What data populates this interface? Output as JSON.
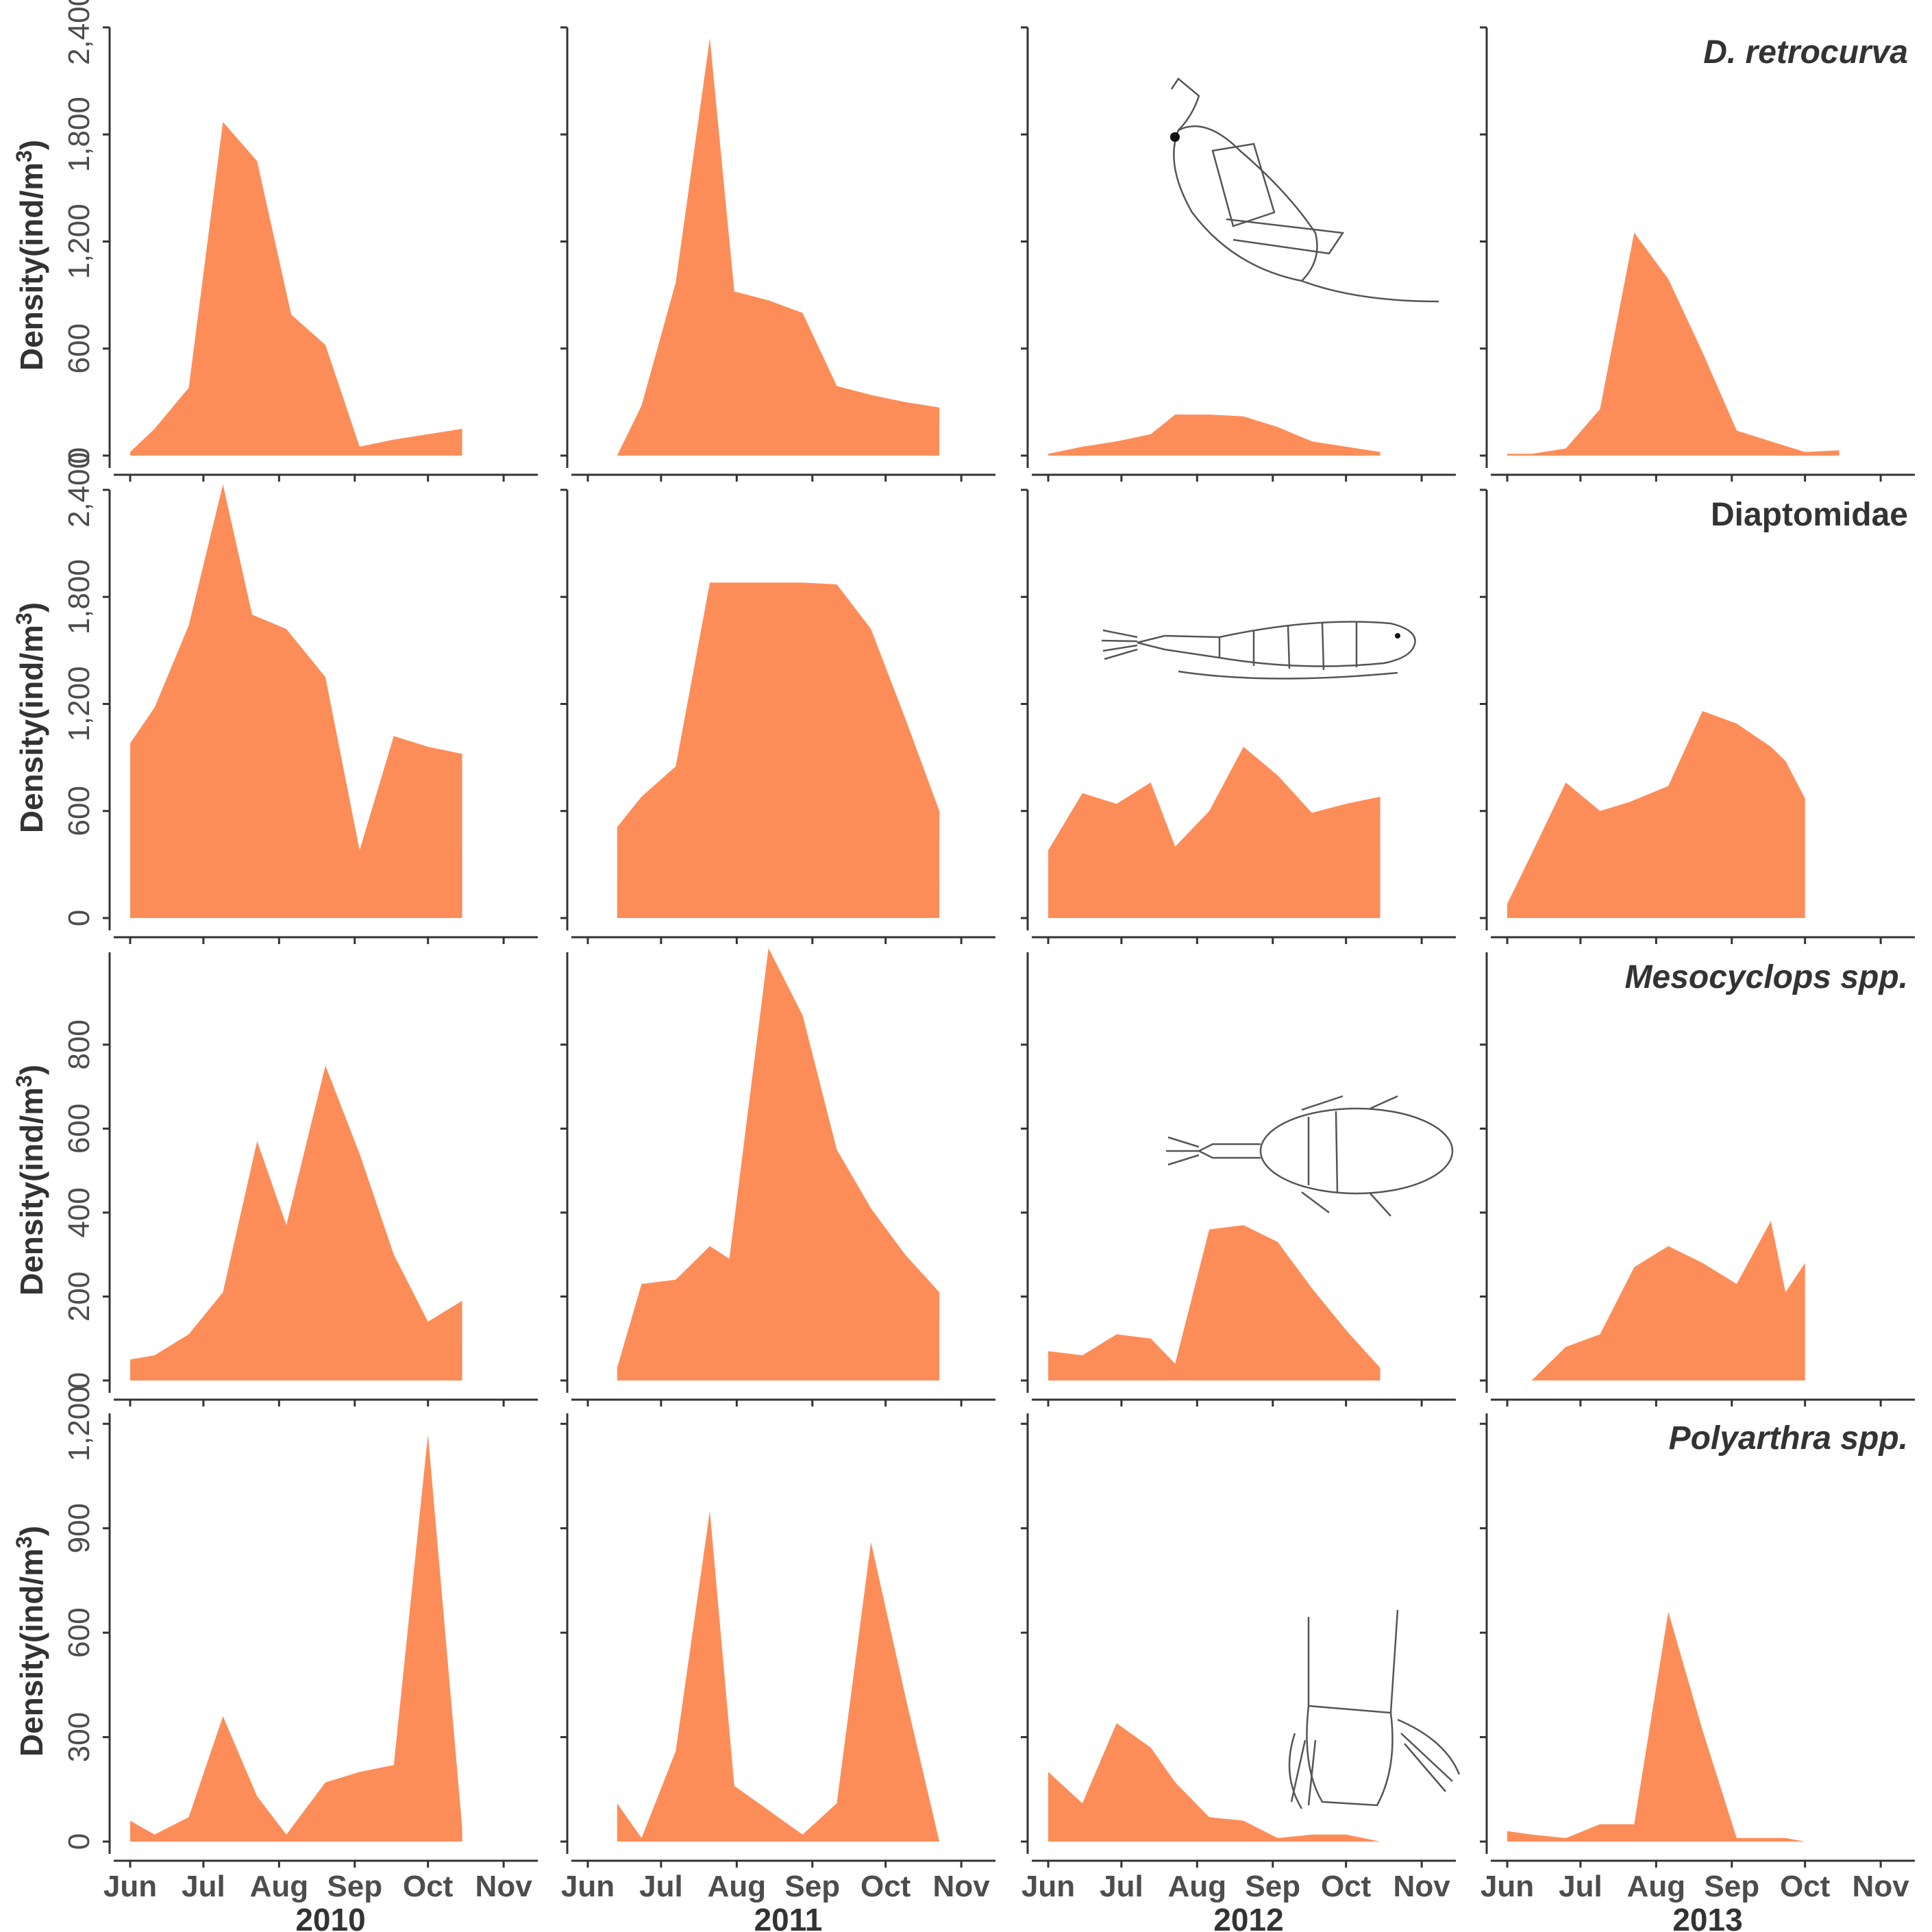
{
  "colors": {
    "area_fill": "#FC8D59"
  },
  "y_axis_title": "Density(ind/m",
  "y_axis_title_sup": "3",
  "y_axis_title_end": ")",
  "months": [
    "Jun",
    "Jul",
    "Aug",
    "Sep",
    "Oct",
    "Nov"
  ],
  "month_days": [
    0,
    30,
    61,
    92,
    122,
    153
  ],
  "years": [
    "2010",
    "2011",
    "2012",
    "2013"
  ],
  "illustrations": [
    "daphnia-icon",
    "diaptomus-copepod-icon",
    "mesocyclops-copepod-icon",
    "polyarthra-rotifer-icon"
  ],
  "chart_data": [
    {
      "type": "area",
      "species": "D. retrocurva",
      "italic": true,
      "ylabel": "Density(ind/m3)",
      "ylim": [
        0,
        2400
      ],
      "yticks": [
        0,
        600,
        1200,
        1800,
        2400
      ],
      "ytick_labels": [
        "0",
        "600",
        "1,200",
        "1,800",
        "2,400"
      ],
      "x_unit": "days since Jun 1",
      "series": [
        {
          "year": "2010",
          "x": [
            0,
            10,
            24,
            38,
            52,
            66,
            80,
            94,
            108,
            122,
            136
          ],
          "y": [
            20,
            150,
            380,
            1870,
            1650,
            790,
            620,
            50,
            90,
            120,
            150
          ]
        },
        {
          "year": "2011",
          "x": [
            12,
            22,
            36,
            50,
            60,
            74,
            88,
            102,
            116,
            130,
            144
          ],
          "y": [
            0,
            280,
            970,
            2340,
            920,
            870,
            800,
            390,
            340,
            300,
            270
          ]
        },
        {
          "year": "2012",
          "x": [
            0,
            14,
            28,
            42,
            52,
            66,
            80,
            94,
            108,
            122,
            136
          ],
          "y": [
            10,
            50,
            80,
            120,
            230,
            230,
            220,
            160,
            80,
            50,
            20
          ]
        },
        {
          "year": "2013",
          "x": [
            0,
            10,
            24,
            38,
            52,
            66,
            80,
            94,
            108,
            122,
            136
          ],
          "y": [
            10,
            10,
            40,
            260,
            1250,
            990,
            580,
            140,
            80,
            20,
            30
          ]
        }
      ]
    },
    {
      "type": "area",
      "species": "Diaptomidae",
      "italic": false,
      "ylabel": "Density(ind/m3)",
      "ylim": [
        0,
        2400
      ],
      "yticks": [
        0,
        600,
        1200,
        1800,
        2400
      ],
      "ytick_labels": [
        "0",
        "600",
        "1,200",
        "1,800",
        "2,400"
      ],
      "x_unit": "days since Jun 1",
      "series": [
        {
          "year": "2010",
          "x": [
            0,
            10,
            24,
            38,
            50,
            64,
            80,
            94,
            108,
            122,
            136
          ],
          "y": [
            980,
            1180,
            1640,
            2430,
            1700,
            1620,
            1350,
            380,
            1020,
            960,
            920
          ]
        },
        {
          "year": "2011",
          "x": [
            12,
            22,
            36,
            50,
            60,
            74,
            88,
            102,
            116,
            130,
            144
          ],
          "y": [
            510,
            680,
            850,
            1880,
            1880,
            1880,
            1880,
            1870,
            1620,
            1120,
            600
          ]
        },
        {
          "year": "2012",
          "x": [
            0,
            14,
            28,
            42,
            52,
            66,
            80,
            94,
            108,
            122,
            136
          ],
          "y": [
            380,
            700,
            640,
            760,
            400,
            600,
            960,
            800,
            590,
            640,
            680
          ]
        },
        {
          "year": "2013",
          "x": [
            0,
            10,
            24,
            38,
            50,
            66,
            80,
            94,
            108,
            114,
            122
          ],
          "y": [
            80,
            360,
            760,
            600,
            650,
            740,
            1160,
            1090,
            960,
            880,
            670
          ]
        }
      ]
    },
    {
      "type": "area",
      "species": "Mesocyclops spp.",
      "italic": true,
      "ylabel": "Density(ind/m3)",
      "ylim": [
        0,
        1020
      ],
      "yticks": [
        0,
        200,
        400,
        600,
        800
      ],
      "ytick_labels": [
        "0",
        "200",
        "400",
        "600",
        "800"
      ],
      "x_unit": "days since Jun 1",
      "series": [
        {
          "year": "2010",
          "x": [
            0,
            10,
            24,
            38,
            52,
            64,
            80,
            94,
            108,
            122,
            136
          ],
          "y": [
            50,
            60,
            110,
            210,
            570,
            370,
            750,
            540,
            300,
            140,
            190
          ]
        },
        {
          "year": "2011",
          "x": [
            12,
            22,
            36,
            50,
            58,
            74,
            88,
            102,
            116,
            130,
            144
          ],
          "y": [
            30,
            230,
            240,
            320,
            290,
            1030,
            870,
            550,
            410,
            300,
            210
          ]
        },
        {
          "year": "2012",
          "x": [
            0,
            14,
            28,
            42,
            52,
            66,
            80,
            94,
            108,
            122,
            136
          ],
          "y": [
            70,
            60,
            110,
            100,
            40,
            360,
            370,
            330,
            220,
            120,
            30
          ]
        },
        {
          "year": "2013",
          "x": [
            0,
            10,
            24,
            38,
            52,
            66,
            80,
            94,
            108,
            114,
            122
          ],
          "y": [
            0,
            0,
            80,
            110,
            270,
            320,
            280,
            230,
            380,
            210,
            280
          ]
        }
      ]
    },
    {
      "type": "area",
      "species": "Polyarthra spp.",
      "italic": true,
      "ylabel": "Density(ind/m3)",
      "ylim": [
        0,
        1230
      ],
      "yticks": [
        0,
        300,
        600,
        900,
        1200
      ],
      "ytick_labels": [
        "0",
        "300",
        "600",
        "900",
        "1,200"
      ],
      "x_unit": "days since Jun 1",
      "series": [
        {
          "year": "2010",
          "x": [
            0,
            10,
            24,
            38,
            52,
            64,
            80,
            94,
            108,
            122,
            136
          ],
          "y": [
            60,
            20,
            70,
            360,
            130,
            20,
            170,
            200,
            220,
            1170,
            40
          ]
        },
        {
          "year": "2011",
          "x": [
            12,
            22,
            36,
            50,
            60,
            74,
            88,
            102,
            116,
            130,
            144
          ],
          "y": [
            110,
            10,
            260,
            950,
            160,
            90,
            20,
            110,
            860,
            420,
            0
          ]
        },
        {
          "year": "2012",
          "x": [
            0,
            14,
            28,
            42,
            52,
            66,
            80,
            94,
            108,
            122,
            136
          ],
          "y": [
            200,
            110,
            340,
            270,
            170,
            70,
            60,
            10,
            20,
            20,
            0
          ]
        },
        {
          "year": "2013",
          "x": [
            0,
            10,
            24,
            38,
            52,
            66,
            80,
            94,
            108,
            114,
            122
          ],
          "y": [
            30,
            20,
            10,
            50,
            50,
            660,
            320,
            10,
            10,
            10,
            0
          ]
        }
      ]
    }
  ]
}
